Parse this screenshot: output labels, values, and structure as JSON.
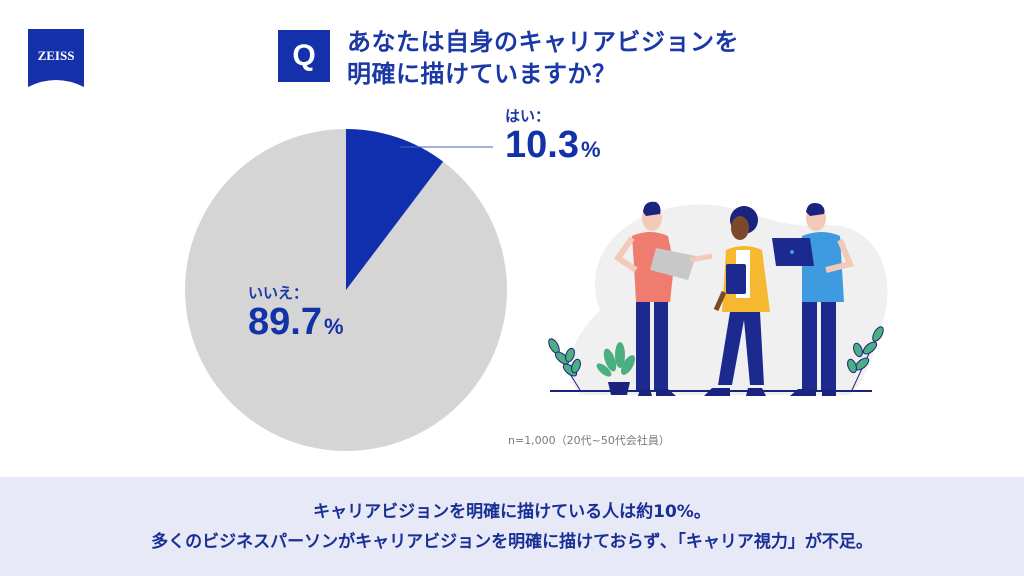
{
  "brand": {
    "logo_text": "ZEISS",
    "color": "#1531a9"
  },
  "question": {
    "badge": "Q",
    "line1": "あなたは自身のキャリアビジョンを",
    "line2": "明確に描けていますか？"
  },
  "labels": {
    "yes_name": "はい：",
    "yes_value": "10.3",
    "no_name": "いいえ：",
    "no_value": "89.7",
    "pct_sign": "%"
  },
  "note": "n=1,000（20代~50代会社員）",
  "footer": {
    "line1": "キャリアビジョンを明確に描けている人は約10%。",
    "line2": "多くのビジネスパーソンがキャリアビジョンを明確に描けておらず､「キャリア視力」が不足。"
  },
  "colors": {
    "yes": "#0f2fae",
    "no": "#d5d5d5",
    "text": "#1432a8",
    "footer_bg": "#e7e9f7"
  },
  "chart_data": {
    "type": "pie",
    "title": "あなたは自身のキャリアビジョンを明確に描けていますか？",
    "categories": [
      "はい",
      "いいえ"
    ],
    "values": [
      10.3,
      89.7
    ],
    "unit": "%",
    "colors": [
      "#0f2fae",
      "#d5d5d5"
    ],
    "start_angle": "12 o'clock, clockwise",
    "sample": "n=1,000（20代~50代会社員）"
  }
}
